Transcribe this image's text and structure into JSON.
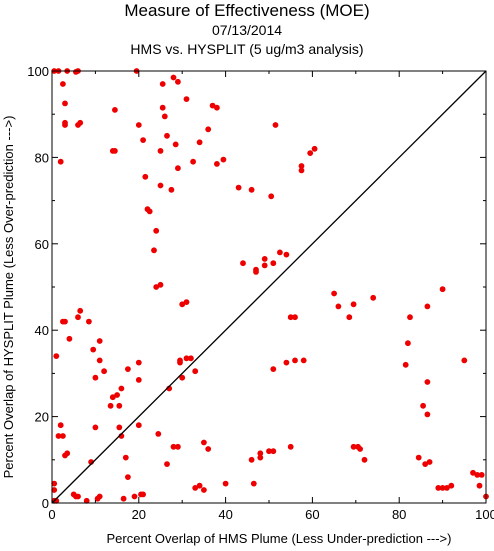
{
  "chart_data": {
    "type": "scatter",
    "title": "Measure of Effectiveness (MOE)",
    "subtitle": "07/13/2014",
    "subtitle2": "HMS vs. HYSPLIT  (5 ug/m3 analysis)",
    "xlabel": "Percent Overlap of HMS Plume (Less Under-prediction --->)",
    "ylabel": "Percent Overlap of HYSPLIT Plume (Less Over-prediction --->)",
    "xlim": [
      0,
      100
    ],
    "ylim": [
      0,
      100
    ],
    "xticks": [
      "0",
      "20",
      "40",
      "60",
      "80",
      "100"
    ],
    "yticks": [
      "0",
      "20",
      "40",
      "60",
      "80",
      "100"
    ],
    "grid": false,
    "reference_line": "y = x",
    "marker_color": "#ee0000",
    "points": [
      [
        0.5,
        100
      ],
      [
        1.5,
        100
      ],
      [
        3.5,
        100
      ],
      [
        5.5,
        99.8
      ],
      [
        6,
        100
      ],
      [
        19.5,
        100
      ],
      [
        28,
        98.5
      ],
      [
        29,
        97.5
      ],
      [
        25.5,
        97
      ],
      [
        2.5,
        97
      ],
      [
        3,
        92.5
      ],
      [
        14.5,
        91
      ],
      [
        25.5,
        91.5
      ],
      [
        31,
        93.5
      ],
      [
        37,
        92
      ],
      [
        38,
        91.5
      ],
      [
        26,
        89.5
      ],
      [
        3,
        88
      ],
      [
        3,
        87.5
      ],
      [
        6.5,
        88
      ],
      [
        6,
        87.5
      ],
      [
        20,
        87.5
      ],
      [
        36,
        86.5
      ],
      [
        51.5,
        87.5
      ],
      [
        26.5,
        85
      ],
      [
        21,
        84
      ],
      [
        28.5,
        83
      ],
      [
        34,
        83.5
      ],
      [
        14,
        81.5
      ],
      [
        14.5,
        81.5
      ],
      [
        25,
        81.5
      ],
      [
        60.5,
        82
      ],
      [
        59.5,
        81
      ],
      [
        2,
        79
      ],
      [
        32.5,
        79
      ],
      [
        38,
        78.5
      ],
      [
        39.5,
        79.5
      ],
      [
        57.5,
        78
      ],
      [
        29,
        77.5
      ],
      [
        57.5,
        77
      ],
      [
        21.5,
        75.5
      ],
      [
        25,
        73.5
      ],
      [
        27.5,
        72.5
      ],
      [
        43,
        73
      ],
      [
        46,
        72.5
      ],
      [
        50.5,
        71
      ],
      [
        22,
        68
      ],
      [
        22.5,
        67.5
      ],
      [
        24,
        63
      ],
      [
        23.5,
        58.5
      ],
      [
        52.5,
        58
      ],
      [
        54,
        57.5
      ],
      [
        51,
        55.5
      ],
      [
        49,
        55
      ],
      [
        49,
        56.5
      ],
      [
        44,
        55.5
      ],
      [
        47,
        54
      ],
      [
        47,
        53.5
      ],
      [
        25,
        50.5
      ],
      [
        24,
        50
      ],
      [
        65,
        48.5
      ],
      [
        69.5,
        46
      ],
      [
        74,
        47.5
      ],
      [
        90,
        49.5
      ],
      [
        86.5,
        45.5
      ],
      [
        30,
        46
      ],
      [
        31,
        46.5
      ],
      [
        66,
        45.5
      ],
      [
        8.5,
        42
      ],
      [
        6,
        43
      ],
      [
        6.5,
        44.5
      ],
      [
        55,
        43
      ],
      [
        56,
        43
      ],
      [
        68.5,
        43
      ],
      [
        82.5,
        43
      ],
      [
        2.5,
        42
      ],
      [
        3,
        42
      ],
      [
        4,
        38
      ],
      [
        11,
        37.5
      ],
      [
        82,
        37
      ],
      [
        1,
        34
      ],
      [
        9.5,
        35.5
      ],
      [
        20,
        32.5
      ],
      [
        29.5,
        33
      ],
      [
        31,
        33.5
      ],
      [
        32,
        33.5
      ],
      [
        54,
        32.5
      ],
      [
        56,
        33
      ],
      [
        58,
        33
      ],
      [
        11,
        33
      ],
      [
        29.5,
        32.5
      ],
      [
        51,
        31
      ],
      [
        81.5,
        32
      ],
      [
        95,
        33
      ],
      [
        12,
        30.5
      ],
      [
        17.5,
        31
      ],
      [
        33,
        30.5
      ],
      [
        10,
        29
      ],
      [
        20,
        28.5
      ],
      [
        30,
        29
      ],
      [
        27,
        26.5
      ],
      [
        86.5,
        28
      ],
      [
        16,
        26.5
      ],
      [
        15,
        25
      ],
      [
        14,
        24.5
      ],
      [
        15.5,
        22.5
      ],
      [
        13.5,
        22.5
      ],
      [
        85.5,
        22.5
      ],
      [
        86.5,
        20.5
      ],
      [
        20,
        18
      ],
      [
        10,
        17.5
      ],
      [
        2,
        18
      ],
      [
        15.5,
        17.5
      ],
      [
        16,
        15.5
      ],
      [
        1.5,
        15.5
      ],
      [
        2.5,
        15.5
      ],
      [
        3.5,
        11.5
      ],
      [
        3,
        11
      ],
      [
        28,
        13
      ],
      [
        29,
        13
      ],
      [
        35,
        14
      ],
      [
        36,
        12.5
      ],
      [
        48,
        11.5
      ],
      [
        50,
        12
      ],
      [
        51,
        12
      ],
      [
        55,
        13
      ],
      [
        69.5,
        13
      ],
      [
        70.5,
        13
      ],
      [
        71,
        12.5
      ],
      [
        17,
        10.5
      ],
      [
        26.5,
        9
      ],
      [
        46,
        10
      ],
      [
        48,
        10.5
      ],
      [
        72,
        10
      ],
      [
        84.5,
        10.5
      ],
      [
        87,
        9.5
      ],
      [
        86,
        9
      ],
      [
        9,
        9.5
      ],
      [
        17.5,
        6
      ],
      [
        33,
        3.5
      ],
      [
        40,
        4.5
      ],
      [
        46.5,
        4.5
      ],
      [
        0.5,
        4.5
      ],
      [
        0.5,
        3
      ],
      [
        5,
        2
      ],
      [
        5.5,
        1.5
      ],
      [
        8,
        0.5
      ],
      [
        10.5,
        1
      ],
      [
        11,
        1.5
      ],
      [
        6,
        1.5
      ],
      [
        19,
        1.5
      ],
      [
        20.5,
        2
      ],
      [
        21,
        2
      ],
      [
        16.5,
        1
      ],
      [
        34,
        4
      ],
      [
        35,
        3
      ],
      [
        89,
        3.5
      ],
      [
        90,
        3.5
      ],
      [
        91,
        3.5
      ],
      [
        92,
        4
      ],
      [
        97,
        7
      ],
      [
        98,
        6.5
      ],
      [
        99,
        6.5
      ],
      [
        98.5,
        4
      ],
      [
        100,
        1.5
      ],
      [
        0.5,
        0.5
      ],
      [
        1,
        0.5
      ],
      [
        24.5,
        16
      ]
    ]
  }
}
